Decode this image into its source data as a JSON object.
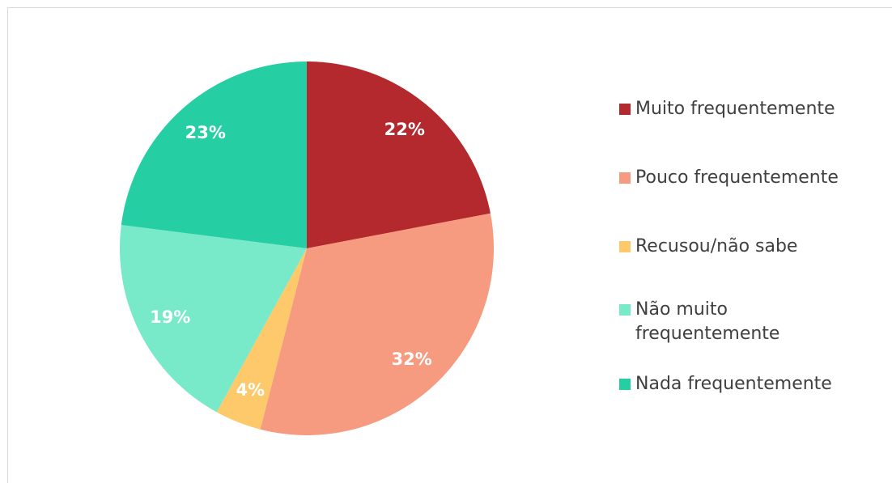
{
  "chart_data": {
    "type": "pie",
    "categories": [
      "Muito frequentemente",
      "Pouco frequentemente",
      "Recusou/não sabe",
      "Não muito frequentemente",
      "Nada frequentemente"
    ],
    "values": [
      22,
      32,
      4,
      19,
      23
    ],
    "value_labels": [
      "22%",
      "32%",
      "4%",
      "19%",
      "23%"
    ],
    "colors": [
      "#b3292e",
      "#f69a80",
      "#fec96a",
      "#78e9c9",
      "#26cfa3"
    ],
    "legend": "right"
  }
}
